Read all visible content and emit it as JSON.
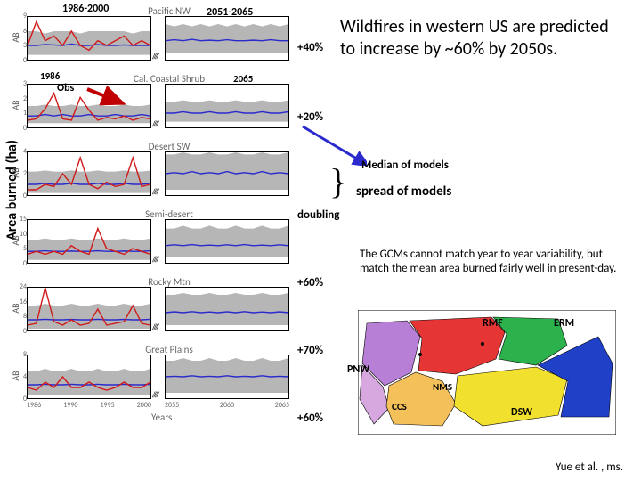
{
  "headline": "Wildfires in western US are predicted to increase by ~60% by 2050s.",
  "gcm_note": "The GCMs cannot match year to year variability, but match the mean area burned fairly well in present-day.",
  "citation": "Yue et al. , ms.",
  "yaxis_global": "Area burned (ha)",
  "xaxis_label": "Years",
  "left_period": "1986-2000",
  "right_period": "2051-2065",
  "left_year": "1986",
  "right_year": "2065",
  "obs_label": "Obs",
  "median_label": "Median of models",
  "spread_label": "spread of models",
  "colors": {
    "obs": "#d11919",
    "median": "#2a2acd",
    "spread": "#a9a9a9",
    "axis": "#000000",
    "text_muted": "#666666",
    "arrow_obs": "#c00000",
    "arrow_median": "#2a2acd"
  },
  "map_colors": {
    "pnw": "#b77fd6",
    "ccs": "#d7a7e0",
    "nms": "#f4c05a",
    "rmf": "#e63535",
    "erm": "#2bb24c",
    "dsw": "#f2e02e",
    "gp": "#2040c8",
    "ocean": "#ffffff",
    "border": "#000000"
  },
  "map_labels": {
    "pnw": "PNW",
    "ccs": "CCS",
    "nms": "NMS",
    "rmf": "RMF",
    "erm": "ERM",
    "dsw": "DSW"
  },
  "panels": [
    {
      "title": "Pacific NW",
      "ylab": "AB",
      "yticks": [
        0,
        3,
        6,
        9
      ],
      "pct": "+40%",
      "obs_left": [
        3,
        8,
        4,
        5,
        3,
        6,
        3,
        2,
        4,
        3,
        4,
        5,
        3,
        4,
        3
      ],
      "med_left": [
        3,
        3,
        3.2,
        3.1,
        3,
        3.3,
        3,
        3,
        3.2,
        3,
        3,
        3.1,
        3,
        3,
        3
      ],
      "med_right": [
        4,
        4.2,
        4,
        4.3,
        4,
        4.1,
        4,
        4.2,
        4,
        4,
        4.1,
        4,
        4.2,
        4,
        4
      ],
      "spread_left": [
        [
          1,
          6
        ],
        [
          1,
          6
        ],
        [
          1,
          5.5
        ],
        [
          1,
          6
        ],
        [
          1,
          6
        ],
        [
          1,
          6
        ],
        [
          1,
          5.5
        ],
        [
          1,
          6
        ],
        [
          1,
          6
        ],
        [
          1,
          6
        ],
        [
          1,
          6
        ],
        [
          1,
          6
        ],
        [
          1,
          5.5
        ],
        [
          1,
          6
        ],
        [
          1,
          6
        ]
      ],
      "spread_right": [
        [
          1.5,
          7.5
        ],
        [
          1.5,
          7
        ],
        [
          1.5,
          7.5
        ],
        [
          1.5,
          7
        ],
        [
          1.5,
          7.5
        ],
        [
          1.5,
          7
        ],
        [
          1.5,
          7.5
        ],
        [
          1.5,
          7
        ],
        [
          1.5,
          7.5
        ],
        [
          1.5,
          7
        ],
        [
          1.5,
          7.5
        ],
        [
          1.5,
          7
        ],
        [
          1.5,
          7.5
        ],
        [
          1.5,
          7
        ],
        [
          1.5,
          7.5
        ]
      ]
    },
    {
      "title": "Cal. Coastal Shrub",
      "ylab": "AB",
      "yticks": [
        0,
        1,
        2,
        3
      ],
      "pct": "+20%",
      "obs_left": [
        0.5,
        0.6,
        1.3,
        2.4,
        0.6,
        0.5,
        2.1,
        1.2,
        0.5,
        0.7,
        0.6,
        0.8,
        0.5,
        0.7,
        0.6
      ],
      "med_left": [
        0.8,
        0.8,
        0.9,
        0.8,
        0.9,
        0.8,
        0.8,
        0.9,
        0.8,
        0.8,
        0.9,
        0.8,
        0.8,
        0.9,
        0.8
      ],
      "med_right": [
        1,
        1,
        1.1,
        1,
        1,
        1.1,
        1,
        1,
        1.1,
        1,
        1,
        1.1,
        1,
        1,
        1.1
      ],
      "spread_left": [
        [
          0.3,
          1.5
        ],
        [
          0.3,
          1.5
        ],
        [
          0.3,
          1.6
        ],
        [
          0.3,
          1.5
        ],
        [
          0.3,
          1.5
        ],
        [
          0.3,
          1.6
        ],
        [
          0.3,
          1.5
        ],
        [
          0.3,
          1.5
        ],
        [
          0.3,
          1.6
        ],
        [
          0.3,
          1.5
        ],
        [
          0.3,
          1.5
        ],
        [
          0.3,
          1.6
        ],
        [
          0.3,
          1.5
        ],
        [
          0.3,
          1.5
        ],
        [
          0.3,
          1.6
        ]
      ],
      "spread_right": [
        [
          0.4,
          1.8
        ],
        [
          0.4,
          1.8
        ],
        [
          0.4,
          1.9
        ],
        [
          0.4,
          1.8
        ],
        [
          0.4,
          1.8
        ],
        [
          0.4,
          1.9
        ],
        [
          0.4,
          1.8
        ],
        [
          0.4,
          1.8
        ],
        [
          0.4,
          1.9
        ],
        [
          0.4,
          1.8
        ],
        [
          0.4,
          1.8
        ],
        [
          0.4,
          1.9
        ],
        [
          0.4,
          1.8
        ],
        [
          0.4,
          1.8
        ],
        [
          0.4,
          1.9
        ]
      ]
    },
    {
      "title": "Desert SW",
      "ylab": "AB",
      "yticks": [
        0,
        2,
        4
      ],
      "pct": "doubling",
      "obs_left": [
        0.5,
        0.5,
        1,
        0.8,
        2,
        1,
        3.5,
        1,
        0.6,
        1.2,
        0.8,
        1,
        3.5,
        0.8,
        1
      ],
      "med_left": [
        1,
        1,
        1.1,
        1,
        1,
        1.1,
        1,
        1,
        1.1,
        1,
        1,
        1.1,
        1,
        1,
        1.1
      ],
      "med_right": [
        2,
        2.1,
        2,
        2.2,
        2,
        2.1,
        2,
        2.2,
        2,
        2.1,
        2,
        2.2,
        2,
        2.1,
        2
      ],
      "spread_left": [
        [
          0.2,
          2.2
        ],
        [
          0.2,
          2.2
        ],
        [
          0.2,
          2.3
        ],
        [
          0.2,
          2.2
        ],
        [
          0.2,
          2.2
        ],
        [
          0.2,
          2.3
        ],
        [
          0.2,
          2.2
        ],
        [
          0.2,
          2.2
        ],
        [
          0.2,
          2.3
        ],
        [
          0.2,
          2.2
        ],
        [
          0.2,
          2.2
        ],
        [
          0.2,
          2.3
        ],
        [
          0.2,
          2.2
        ],
        [
          0.2,
          2.2
        ],
        [
          0.2,
          2.3
        ]
      ],
      "spread_right": [
        [
          0.5,
          3.8
        ],
        [
          0.5,
          3.8
        ],
        [
          0.5,
          4
        ],
        [
          0.5,
          3.8
        ],
        [
          0.5,
          3.8
        ],
        [
          0.5,
          4
        ],
        [
          0.5,
          3.8
        ],
        [
          0.5,
          3.8
        ],
        [
          0.5,
          4
        ],
        [
          0.5,
          3.8
        ],
        [
          0.5,
          3.8
        ],
        [
          0.5,
          4
        ],
        [
          0.5,
          3.8
        ],
        [
          0.5,
          3.8
        ],
        [
          0.5,
          4
        ]
      ]
    },
    {
      "title": "Semi-desert",
      "ylab": "AB",
      "yticks": [
        0,
        5,
        10,
        15
      ],
      "pct": "+60%",
      "obs_left": [
        3,
        4,
        3,
        4,
        3,
        6,
        4,
        3,
        12,
        5,
        4,
        3,
        5,
        4,
        3
      ],
      "med_left": [
        4,
        4,
        4.2,
        4,
        4,
        4.1,
        4,
        4,
        4.2,
        4,
        4,
        4.1,
        4,
        4,
        4.2
      ],
      "med_right": [
        6,
        6.3,
        6,
        6.4,
        6,
        6.2,
        6,
        6.3,
        6,
        6.4,
        6,
        6.2,
        6,
        6.3,
        6
      ],
      "spread_left": [
        [
          1,
          8
        ],
        [
          1,
          8
        ],
        [
          1,
          8.5
        ],
        [
          1,
          8
        ],
        [
          1,
          8
        ],
        [
          1,
          8.5
        ],
        [
          1,
          8
        ],
        [
          1,
          8
        ],
        [
          1,
          8.5
        ],
        [
          1,
          8
        ],
        [
          1,
          8
        ],
        [
          1,
          8.5
        ],
        [
          1,
          8
        ],
        [
          1,
          8
        ],
        [
          1,
          8.5
        ]
      ],
      "spread_right": [
        [
          2,
          12
        ],
        [
          2,
          12
        ],
        [
          2,
          13
        ],
        [
          2,
          12
        ],
        [
          2,
          12
        ],
        [
          2,
          13
        ],
        [
          2,
          12
        ],
        [
          2,
          12
        ],
        [
          2,
          13
        ],
        [
          2,
          12
        ],
        [
          2,
          12
        ],
        [
          2,
          13
        ],
        [
          2,
          12
        ],
        [
          2,
          12
        ],
        [
          2,
          13
        ]
      ]
    },
    {
      "title": "Rocky Mtn",
      "ylab": "AB",
      "yticks": [
        0,
        8,
        16,
        24
      ],
      "pct": "+70%",
      "obs_left": [
        3,
        4,
        24,
        5,
        3,
        6,
        3,
        4,
        12,
        3,
        4,
        5,
        14,
        4,
        3
      ],
      "med_left": [
        6,
        6,
        6.3,
        6,
        6,
        6.2,
        6,
        6,
        6.3,
        6,
        6,
        6.2,
        6,
        6,
        6.3
      ],
      "med_right": [
        10,
        10.5,
        10,
        10.6,
        10,
        10.4,
        10,
        10.5,
        10,
        10.6,
        10,
        10.4,
        10,
        10.5,
        10
      ],
      "spread_left": [
        [
          1,
          14
        ],
        [
          1,
          14
        ],
        [
          1,
          15
        ],
        [
          1,
          14
        ],
        [
          1,
          14
        ],
        [
          1,
          15
        ],
        [
          1,
          14
        ],
        [
          1,
          14
        ],
        [
          1,
          15
        ],
        [
          1,
          14
        ],
        [
          1,
          14
        ],
        [
          1,
          15
        ],
        [
          1,
          14
        ],
        [
          1,
          14
        ],
        [
          1,
          15
        ]
      ],
      "spread_right": [
        [
          3,
          20
        ],
        [
          3,
          20
        ],
        [
          3,
          21
        ],
        [
          3,
          20
        ],
        [
          3,
          20
        ],
        [
          3,
          21
        ],
        [
          3,
          20
        ],
        [
          3,
          20
        ],
        [
          3,
          21
        ],
        [
          3,
          20
        ],
        [
          3,
          20
        ],
        [
          3,
          21
        ],
        [
          3,
          20
        ],
        [
          3,
          20
        ],
        [
          3,
          21
        ]
      ]
    },
    {
      "title": "Great Plains",
      "ylab": "AB",
      "yticks": [
        0,
        4,
        8
      ],
      "pct": "+60%",
      "obs_left": [
        2,
        1.5,
        3,
        2,
        4,
        2,
        2,
        3,
        2,
        1.5,
        2,
        3,
        2,
        2,
        3
      ],
      "med_left": [
        2.5,
        2.5,
        2.6,
        2.5,
        2.5,
        2.6,
        2.5,
        2.5,
        2.6,
        2.5,
        2.5,
        2.6,
        2.5,
        2.5,
        2.6
      ],
      "med_right": [
        4,
        4.1,
        4,
        4.2,
        4,
        4.1,
        4,
        4.2,
        4,
        4.1,
        4,
        4.2,
        4,
        4.1,
        4
      ],
      "spread_left": [
        [
          0.5,
          5
        ],
        [
          0.5,
          5
        ],
        [
          0.5,
          5.5
        ],
        [
          0.5,
          5
        ],
        [
          0.5,
          5
        ],
        [
          0.5,
          5.5
        ],
        [
          0.5,
          5
        ],
        [
          0.5,
          5
        ],
        [
          0.5,
          5.5
        ],
        [
          0.5,
          5
        ],
        [
          0.5,
          5
        ],
        [
          0.5,
          5.5
        ],
        [
          0.5,
          5
        ],
        [
          0.5,
          5
        ],
        [
          0.5,
          5.5
        ]
      ],
      "spread_right": [
        [
          1,
          7
        ],
        [
          1,
          7
        ],
        [
          1,
          7.5
        ],
        [
          1,
          7
        ],
        [
          1,
          7
        ],
        [
          1,
          7.5
        ],
        [
          1,
          7
        ],
        [
          1,
          7
        ],
        [
          1,
          7.5
        ],
        [
          1,
          7
        ],
        [
          1,
          7
        ],
        [
          1,
          7.5
        ],
        [
          1,
          7
        ],
        [
          1,
          7
        ],
        [
          1,
          7.5
        ]
      ]
    }
  ],
  "left_xticks": [
    "1986",
    "1990",
    "1995",
    "2000"
  ],
  "right_xticks": [
    "2055",
    "2060",
    "2065"
  ]
}
